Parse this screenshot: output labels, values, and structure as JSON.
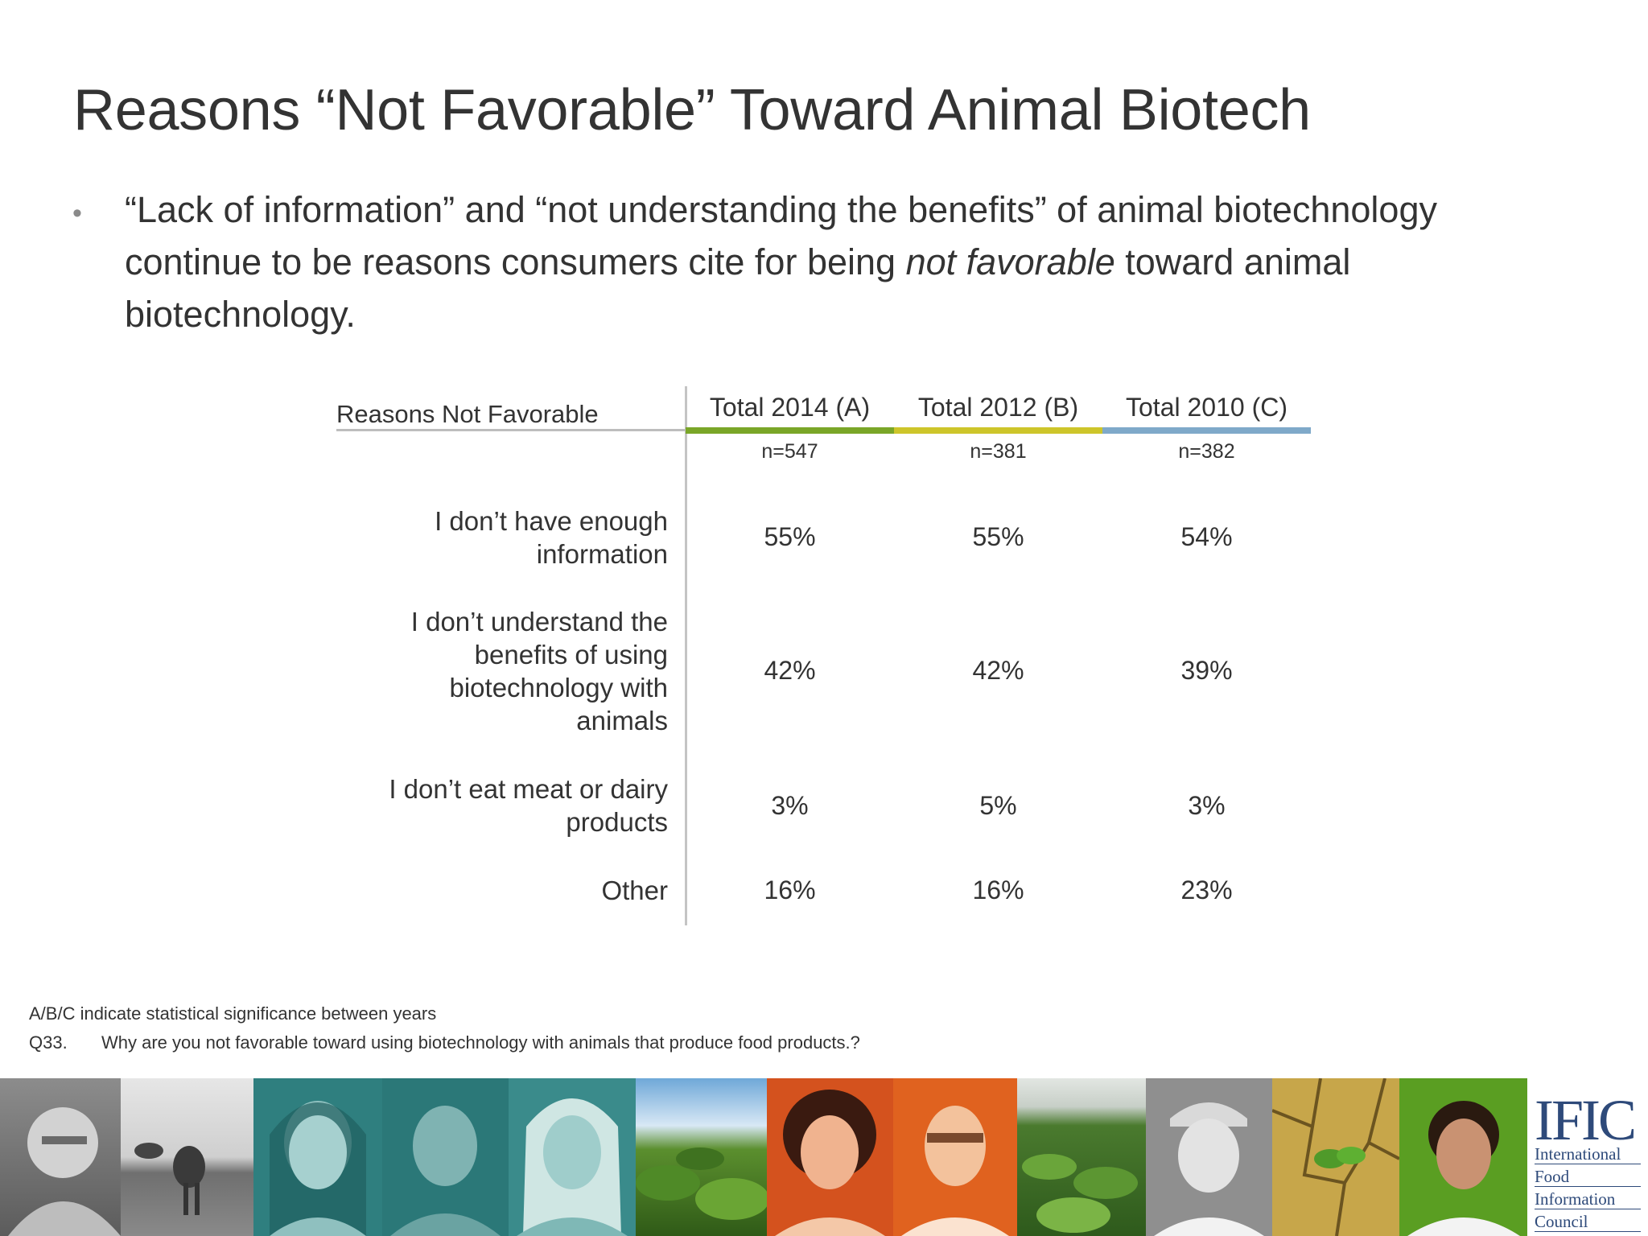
{
  "slide": {
    "title": "Reasons “Not Favorable” Toward Animal Biotech",
    "bullet": {
      "part1": "“Lack of information” and “not understanding the benefits” of animal biotechnology continue to be reasons consumers cite for being ",
      "italic": "not favorable",
      "part2": " toward animal biotechnology."
    }
  },
  "table": {
    "row_header": "Reasons Not Favorable",
    "columns": [
      {
        "label": "Total 2014 (A)",
        "n": "n=547",
        "color": "#7aa628"
      },
      {
        "label": "Total 2012 (B)",
        "n": "n=381",
        "color": "#cdc52a"
      },
      {
        "label": "Total 2010 (C)",
        "n": "n=382",
        "color": "#7fa9c9"
      }
    ],
    "rows": [
      {
        "label": "I don’t have enough information",
        "values": [
          "55%",
          "55%",
          "54%"
        ]
      },
      {
        "label": "I don’t understand the benefits of using biotechnology with animals",
        "values": [
          "42%",
          "42%",
          "39%"
        ]
      },
      {
        "label": "I don’t eat meat or dairy products",
        "values": [
          "3%",
          "5%",
          "3%"
        ]
      },
      {
        "label": "Other",
        "values": [
          "16%",
          "16%",
          "23%"
        ]
      }
    ]
  },
  "footnotes": {
    "significance": "A/B/C indicate statistical significance between years",
    "question_id": "Q33.",
    "question_text": "Why are you not favorable toward using biotechnology with animals that produce food products.?"
  },
  "logo": {
    "acronym": "IFIC",
    "lines": [
      "International",
      "Food",
      "Information",
      "Council"
    ]
  }
}
